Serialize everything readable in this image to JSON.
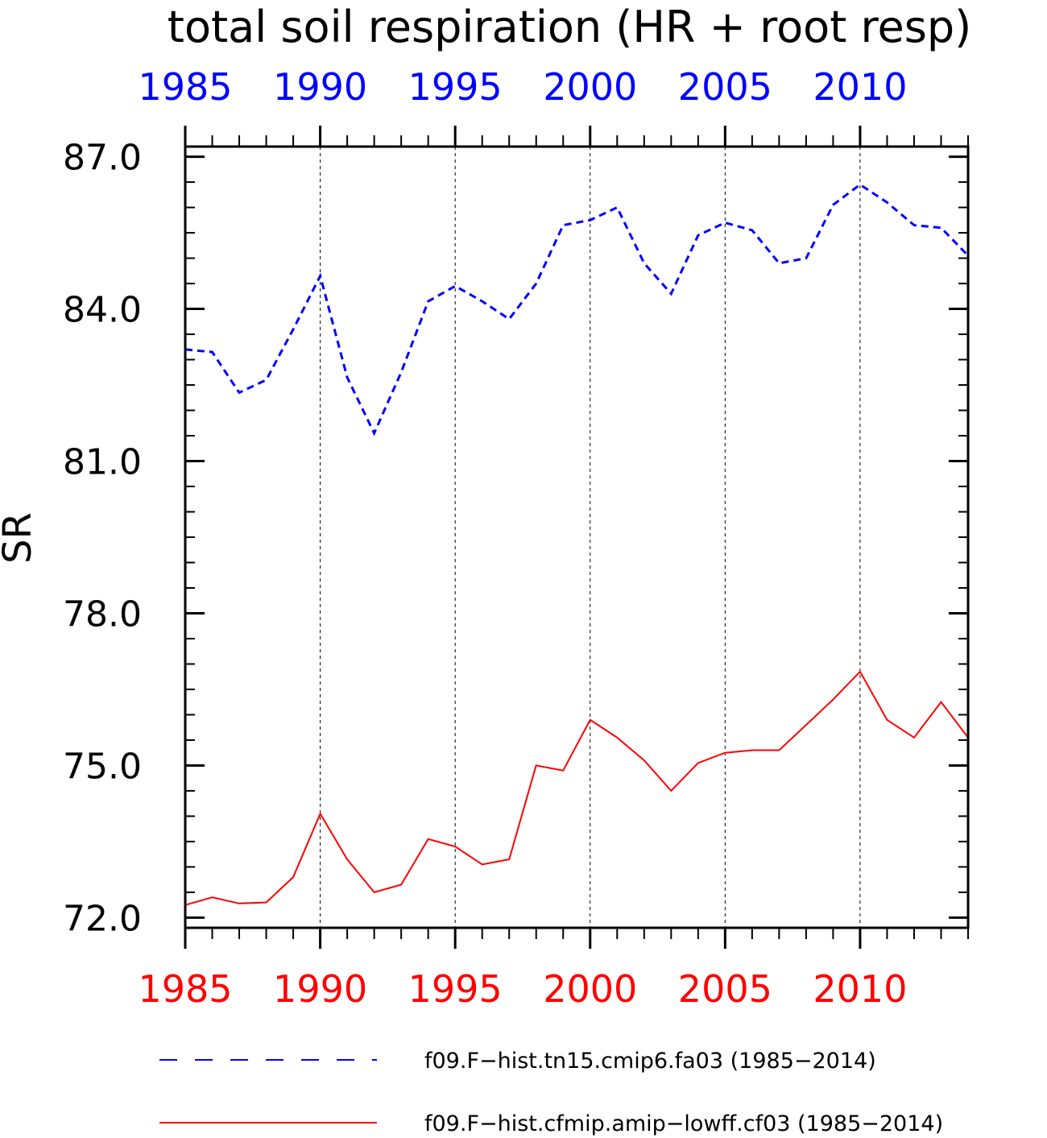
{
  "chart_data": {
    "type": "line",
    "title": "total soil respiration (HR + root resp)",
    "ylabel": "SR",
    "xlim": [
      1985,
      2014
    ],
    "ylim": [
      71.8,
      87.2
    ],
    "yticks": [
      "72.0",
      "75.0",
      "78.0",
      "81.0",
      "84.0",
      "87.0"
    ],
    "ytick_values": [
      72,
      75,
      78,
      81,
      84,
      87
    ],
    "xticks_bottom": [
      "1985",
      "1990",
      "1995",
      "2000",
      "2005",
      "2010"
    ],
    "xticks_top": [
      "1985",
      "1990",
      "1995",
      "2000",
      "2005",
      "2010"
    ],
    "xtick_values": [
      1985,
      1990,
      1995,
      2000,
      2005,
      2010
    ],
    "vertical_gridlines": [
      1990,
      1995,
      2000,
      2005,
      2010
    ],
    "x": [
      1985,
      1986,
      1987,
      1988,
      1989,
      1990,
      1991,
      1992,
      1993,
      1994,
      1995,
      1996,
      1997,
      1998,
      1999,
      2000,
      2001,
      2002,
      2003,
      2004,
      2005,
      2006,
      2007,
      2008,
      2009,
      2010,
      2011,
      2012,
      2013,
      2014
    ],
    "series": [
      {
        "name": "f09.F−hist.tn15.cmip6.fa03 (1985−2014)",
        "color": "#0000ff",
        "dash": "dashed",
        "axis_color_top": "#0000ff",
        "values": [
          83.2,
          83.15,
          82.35,
          82.6,
          83.6,
          84.65,
          82.65,
          81.55,
          82.75,
          84.15,
          84.45,
          84.15,
          83.8,
          84.5,
          85.65,
          85.75,
          86.0,
          84.9,
          84.3,
          85.45,
          85.7,
          85.55,
          84.9,
          85.0,
          86.05,
          86.45,
          86.1,
          85.65,
          85.6,
          85.05
        ]
      },
      {
        "name": "f09.F−hist.cfmip.amip−lowff.cf03 (1985−2014)",
        "color": "#ff0000",
        "dash": "solid",
        "axis_color_bottom": "#ff0000",
        "values": [
          72.25,
          72.4,
          72.28,
          72.3,
          72.8,
          74.05,
          73.15,
          72.5,
          72.65,
          73.55,
          73.4,
          73.05,
          73.15,
          75.0,
          74.9,
          75.9,
          75.55,
          75.1,
          74.5,
          75.05,
          75.25,
          75.3,
          75.3,
          75.8,
          76.3,
          76.85,
          75.9,
          75.55,
          76.25,
          75.55
        ]
      }
    ],
    "legend_position": "bottom"
  }
}
